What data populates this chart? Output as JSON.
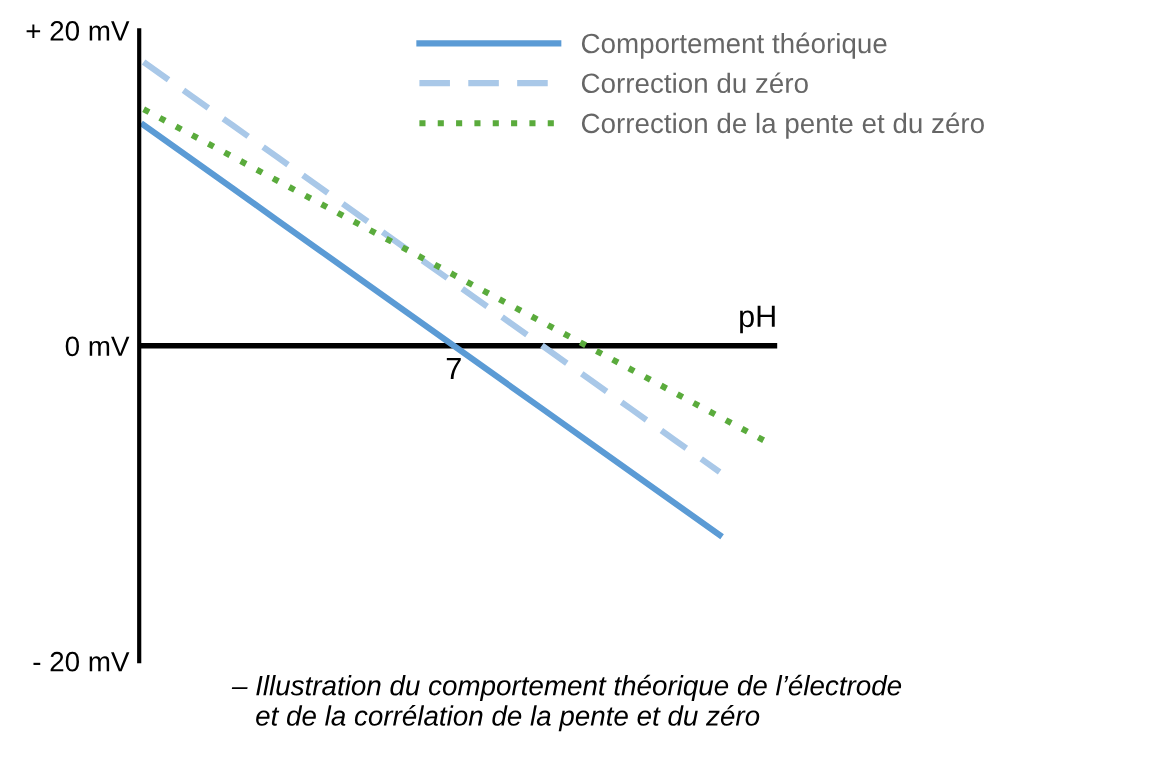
{
  "chart_data": {
    "type": "line",
    "xlabel": "pH",
    "categories": [
      null,
      null,
      null,
      null,
      null,
      null,
      null,
      "7",
      null,
      null,
      null,
      null,
      null,
      null,
      null
    ],
    "ylim": [
      -20,
      20
    ],
    "yticks": [
      {
        "value": 20,
        "label": "+ 20 mV"
      },
      {
        "value": 0,
        "label": "0 mV"
      },
      {
        "value": -20,
        "label": "- 20 mV"
      }
    ],
    "series": [
      {
        "name": "Comportement théorique",
        "color": "#5b9bd5",
        "line_style": "solid",
        "values": [
          14,
          12,
          10,
          8,
          6,
          4,
          2,
          0,
          -2,
          -4,
          -6,
          -8,
          -10,
          -12,
          null
        ]
      },
      {
        "name": "Correction du zéro",
        "color": "#a9c8e8",
        "line_style": "dashed",
        "values": [
          18,
          16,
          14,
          12,
          10,
          8,
          6,
          4,
          2,
          0,
          -2,
          -4,
          -6,
          -8,
          null
        ]
      },
      {
        "name": "Correction de la pente et du zéro",
        "color": "#5aab3c",
        "line_style": "dotted",
        "values": [
          15,
          13.5,
          12,
          10.5,
          9,
          7.5,
          6,
          4.5,
          3,
          1.5,
          0,
          -1.5,
          -3,
          -4.5,
          -6
        ]
      }
    ],
    "ref_lines": [
      {
        "axis": "y",
        "value": 0,
        "color": "#000000",
        "line_style": "solid"
      }
    ],
    "grid": false,
    "legend": "top right",
    "annotations": [
      "– Illustration du comportement théorique de l’électrode\n   et de la corrélation de la pente et du zéro"
    ]
  }
}
